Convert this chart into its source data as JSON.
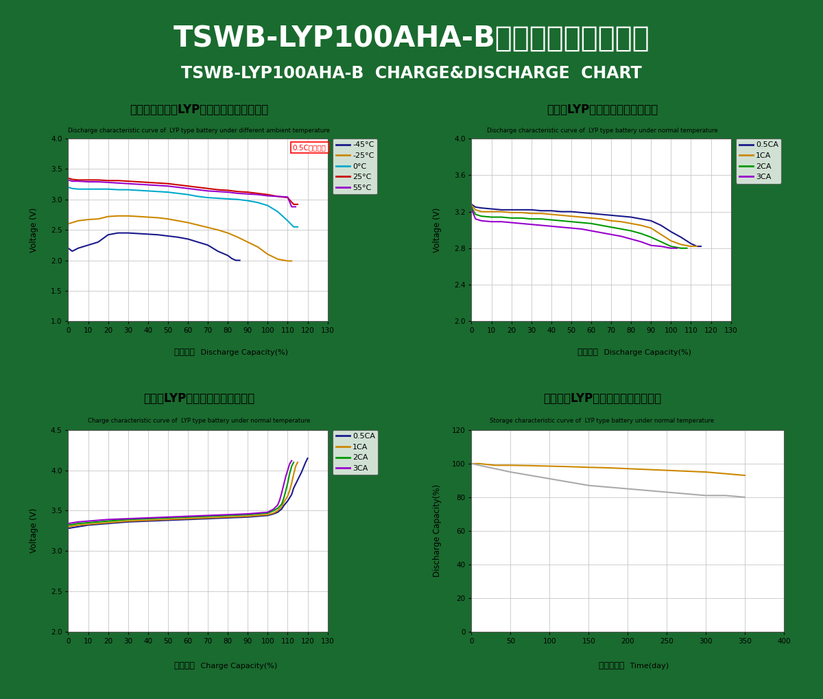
{
  "bg_color": "#1a6b2f",
  "title_cn": "TSWB-LYP100AHA-B型电池的充放电特性",
  "title_en": "TSWB-LYP100AHA-B  CHARGE&DISCHARGE  CHART",
  "plot1": {
    "title_cn": "不同环境温度下LYP类电池的放电特性曲线",
    "title_en": "Discharge characteristic curve of  LYP type battery under different ambient temperature",
    "xlabel_cn": "放电容量",
    "xlabel_en": "Discharge Capacity(%)",
    "ylabel": "Voltage (V)",
    "xlim": [
      0,
      130
    ],
    "ylim": [
      1,
      4
    ],
    "xticks": [
      0,
      10,
      20,
      30,
      40,
      50,
      60,
      70,
      80,
      90,
      100,
      110,
      120,
      130
    ],
    "yticks": [
      1,
      1.5,
      2,
      2.5,
      3,
      3.5,
      4
    ],
    "annotation": "0.5C电流进行",
    "series": [
      {
        "label": "-45°C",
        "color": "#1a1a8c",
        "x": [
          0,
          2,
          5,
          10,
          15,
          20,
          25,
          30,
          35,
          40,
          45,
          50,
          55,
          60,
          65,
          70,
          75,
          80,
          82,
          84,
          86
        ],
        "y": [
          2.2,
          2.15,
          2.2,
          2.25,
          2.3,
          2.42,
          2.45,
          2.45,
          2.44,
          2.43,
          2.42,
          2.4,
          2.38,
          2.35,
          2.3,
          2.25,
          2.15,
          2.08,
          2.03,
          2.0,
          2.0
        ]
      },
      {
        "label": "-25°C",
        "color": "#cc8800",
        "x": [
          0,
          2,
          5,
          10,
          15,
          20,
          25,
          30,
          35,
          40,
          45,
          50,
          55,
          60,
          65,
          70,
          75,
          80,
          85,
          90,
          95,
          100,
          105,
          110,
          112
        ],
        "y": [
          2.6,
          2.62,
          2.65,
          2.67,
          2.68,
          2.72,
          2.73,
          2.73,
          2.72,
          2.71,
          2.7,
          2.68,
          2.65,
          2.62,
          2.58,
          2.54,
          2.5,
          2.45,
          2.38,
          2.3,
          2.22,
          2.1,
          2.02,
          1.99,
          1.99
        ]
      },
      {
        "label": "0°C",
        "color": "#00aacc",
        "x": [
          0,
          2,
          5,
          10,
          15,
          20,
          25,
          30,
          35,
          40,
          45,
          50,
          55,
          60,
          65,
          70,
          75,
          80,
          85,
          90,
          95,
          100,
          105,
          110,
          113,
          115
        ],
        "y": [
          3.2,
          3.18,
          3.17,
          3.17,
          3.17,
          3.17,
          3.16,
          3.16,
          3.15,
          3.14,
          3.13,
          3.12,
          3.1,
          3.08,
          3.05,
          3.03,
          3.02,
          3.01,
          3.0,
          2.98,
          2.95,
          2.9,
          2.8,
          2.65,
          2.55,
          2.55
        ]
      },
      {
        "label": "25°C",
        "color": "#cc0000",
        "x": [
          0,
          2,
          5,
          10,
          15,
          20,
          25,
          30,
          35,
          40,
          45,
          50,
          55,
          60,
          65,
          70,
          75,
          80,
          85,
          90,
          95,
          100,
          105,
          110,
          113,
          115
        ],
        "y": [
          3.35,
          3.33,
          3.32,
          3.32,
          3.32,
          3.31,
          3.31,
          3.3,
          3.29,
          3.28,
          3.27,
          3.26,
          3.24,
          3.22,
          3.2,
          3.18,
          3.16,
          3.15,
          3.13,
          3.12,
          3.1,
          3.08,
          3.05,
          3.03,
          2.92,
          2.92
        ]
      },
      {
        "label": "55°C",
        "color": "#9900cc",
        "x": [
          0,
          2,
          5,
          10,
          15,
          20,
          25,
          30,
          35,
          40,
          45,
          50,
          55,
          60,
          65,
          70,
          75,
          80,
          85,
          90,
          95,
          100,
          105,
          110,
          112,
          114
        ],
        "y": [
          3.32,
          3.3,
          3.3,
          3.29,
          3.29,
          3.28,
          3.27,
          3.26,
          3.25,
          3.24,
          3.23,
          3.22,
          3.2,
          3.18,
          3.16,
          3.14,
          3.13,
          3.12,
          3.1,
          3.09,
          3.08,
          3.06,
          3.05,
          3.04,
          2.88,
          2.88
        ]
      }
    ]
  },
  "plot2": {
    "title_cn": "常温下LYP类电池的放电特性曲线",
    "title_en": "Discharge characteristic curve of  LYP type battery under normal temperature",
    "xlabel_cn": "放电容量",
    "xlabel_en": "Discharge Capacity(%)",
    "ylabel": "Voltage (V)",
    "xlim": [
      0,
      130
    ],
    "ylim": [
      2,
      4
    ],
    "xticks": [
      0,
      10,
      20,
      30,
      40,
      50,
      60,
      70,
      80,
      90,
      100,
      110,
      120,
      130
    ],
    "yticks": [
      2,
      2.4,
      2.8,
      3.2,
      3.6,
      4.0
    ],
    "series": [
      {
        "label": "0.5CA",
        "color": "#1a1a8c",
        "x": [
          0,
          2,
          5,
          10,
          15,
          20,
          25,
          30,
          35,
          40,
          45,
          50,
          55,
          60,
          65,
          70,
          75,
          80,
          85,
          90,
          95,
          100,
          105,
          110,
          113,
          115
        ],
        "y": [
          3.28,
          3.25,
          3.24,
          3.23,
          3.22,
          3.22,
          3.22,
          3.22,
          3.21,
          3.21,
          3.2,
          3.2,
          3.19,
          3.18,
          3.17,
          3.16,
          3.15,
          3.14,
          3.12,
          3.1,
          3.05,
          2.98,
          2.92,
          2.85,
          2.82,
          2.82
        ]
      },
      {
        "label": "1CA",
        "color": "#cc8800",
        "x": [
          0,
          2,
          5,
          10,
          15,
          20,
          25,
          30,
          35,
          40,
          45,
          50,
          55,
          60,
          65,
          70,
          75,
          80,
          85,
          90,
          95,
          100,
          105,
          110,
          113
        ],
        "y": [
          3.27,
          3.22,
          3.2,
          3.2,
          3.2,
          3.19,
          3.19,
          3.18,
          3.18,
          3.17,
          3.16,
          3.15,
          3.14,
          3.13,
          3.12,
          3.1,
          3.09,
          3.07,
          3.05,
          3.02,
          2.95,
          2.88,
          2.84,
          2.82,
          2.82
        ]
      },
      {
        "label": "2CA",
        "color": "#009900",
        "x": [
          0,
          2,
          5,
          10,
          15,
          20,
          25,
          30,
          35,
          40,
          45,
          50,
          55,
          60,
          65,
          70,
          75,
          80,
          85,
          90,
          95,
          100,
          105,
          108
        ],
        "y": [
          3.25,
          3.17,
          3.15,
          3.14,
          3.14,
          3.13,
          3.13,
          3.12,
          3.12,
          3.11,
          3.1,
          3.09,
          3.08,
          3.07,
          3.05,
          3.03,
          3.01,
          2.99,
          2.96,
          2.92,
          2.87,
          2.82,
          2.8,
          2.8
        ]
      },
      {
        "label": "3CA",
        "color": "#9900cc",
        "x": [
          0,
          2,
          5,
          10,
          15,
          20,
          25,
          30,
          35,
          40,
          45,
          50,
          55,
          60,
          65,
          70,
          75,
          80,
          85,
          90,
          95,
          100,
          103
        ],
        "y": [
          3.23,
          3.12,
          3.1,
          3.09,
          3.09,
          3.08,
          3.07,
          3.06,
          3.05,
          3.04,
          3.03,
          3.02,
          3.01,
          2.99,
          2.97,
          2.95,
          2.93,
          2.9,
          2.87,
          2.83,
          2.82,
          2.8,
          2.8
        ]
      }
    ]
  },
  "plot3": {
    "title_cn": "常温下LYP类电池的充电特性曲线",
    "title_en": "Charge characteristic curve of  LYP type battery under normal temperature",
    "xlabel_cn": "充电容量",
    "xlabel_en": "Charge Capacity(%)",
    "ylabel": "Voltage (V)",
    "xlim": [
      0,
      130
    ],
    "ylim": [
      2,
      4.5
    ],
    "xticks": [
      0,
      10,
      20,
      30,
      40,
      50,
      60,
      70,
      80,
      90,
      100,
      110,
      120,
      130
    ],
    "yticks": [
      2,
      2.5,
      3,
      3.5,
      4,
      4.5
    ],
    "series": [
      {
        "label": "0.5CA",
        "color": "#1a1a8c",
        "x": [
          0,
          5,
          10,
          20,
          30,
          40,
          50,
          60,
          70,
          80,
          90,
          95,
          100,
          103,
          105,
          107,
          108,
          110,
          112,
          113,
          115,
          117,
          119,
          120
        ],
        "y": [
          3.28,
          3.3,
          3.32,
          3.34,
          3.36,
          3.37,
          3.38,
          3.39,
          3.4,
          3.41,
          3.42,
          3.43,
          3.44,
          3.46,
          3.48,
          3.52,
          3.56,
          3.62,
          3.7,
          3.78,
          3.88,
          3.98,
          4.1,
          4.15
        ]
      },
      {
        "label": "1CA",
        "color": "#cc8800",
        "x": [
          0,
          5,
          10,
          20,
          30,
          40,
          50,
          60,
          70,
          80,
          90,
          95,
          100,
          103,
          105,
          107,
          108,
          110,
          111,
          112,
          113,
          114,
          115
        ],
        "y": [
          3.3,
          3.32,
          3.33,
          3.35,
          3.37,
          3.38,
          3.39,
          3.4,
          3.41,
          3.42,
          3.43,
          3.44,
          3.45,
          3.47,
          3.5,
          3.55,
          3.6,
          3.68,
          3.75,
          3.84,
          3.95,
          4.05,
          4.1
        ]
      },
      {
        "label": "2CA",
        "color": "#009900",
        "x": [
          0,
          5,
          10,
          20,
          30,
          40,
          50,
          60,
          70,
          80,
          90,
          95,
          100,
          103,
          105,
          107,
          108,
          109,
          110,
          111,
          112,
          113
        ],
        "y": [
          3.32,
          3.34,
          3.35,
          3.37,
          3.39,
          3.4,
          3.41,
          3.42,
          3.43,
          3.44,
          3.45,
          3.46,
          3.47,
          3.5,
          3.53,
          3.58,
          3.65,
          3.74,
          3.84,
          3.96,
          4.05,
          4.1
        ]
      },
      {
        "label": "3CA",
        "color": "#9900cc",
        "x": [
          0,
          5,
          10,
          20,
          30,
          40,
          50,
          60,
          70,
          80,
          90,
          95,
          100,
          103,
          105,
          106,
          107,
          108,
          109,
          110,
          111,
          112
        ],
        "y": [
          3.34,
          3.36,
          3.37,
          3.39,
          3.4,
          3.41,
          3.42,
          3.43,
          3.44,
          3.45,
          3.46,
          3.47,
          3.48,
          3.52,
          3.57,
          3.63,
          3.72,
          3.82,
          3.92,
          4.0,
          4.08,
          4.12
        ]
      }
    ]
  },
  "plot4": {
    "title_cn": "在常温下LYP类电池的存储特性曲线",
    "title_en": "Storage characteristic curve of  LYP type battery under normal temperature",
    "xlabel_cn": "时间（天）",
    "xlabel_en": "Time(day)",
    "ylabel": "Discharge Capacity(%)",
    "xlim": [
      0,
      400
    ],
    "ylim": [
      0,
      120
    ],
    "xticks": [
      0,
      50,
      100,
      150,
      200,
      250,
      300,
      350,
      400
    ],
    "yticks": [
      0,
      20,
      40,
      60,
      80,
      100,
      120
    ],
    "series": [
      {
        "label": null,
        "color": "#cc8800",
        "x": [
          0,
          10,
          20,
          30,
          50,
          75,
          100,
          125,
          150,
          175,
          200,
          225,
          250,
          275,
          300,
          325,
          350
        ],
        "y": [
          100,
          100,
          99.5,
          99,
          99,
          98.8,
          98.5,
          98.2,
          97.8,
          97.5,
          97,
          96.5,
          96,
          95.5,
          95,
          94,
          93
        ]
      },
      {
        "label": null,
        "color": "#aaaaaa",
        "x": [
          0,
          10,
          20,
          30,
          50,
          75,
          100,
          125,
          150,
          175,
          200,
          225,
          250,
          275,
          300,
          325,
          350
        ],
        "y": [
          100,
          99,
          98,
          97,
          95,
          93,
          91,
          89,
          87,
          86,
          85,
          84,
          83,
          82,
          81,
          81,
          80
        ]
      }
    ]
  }
}
